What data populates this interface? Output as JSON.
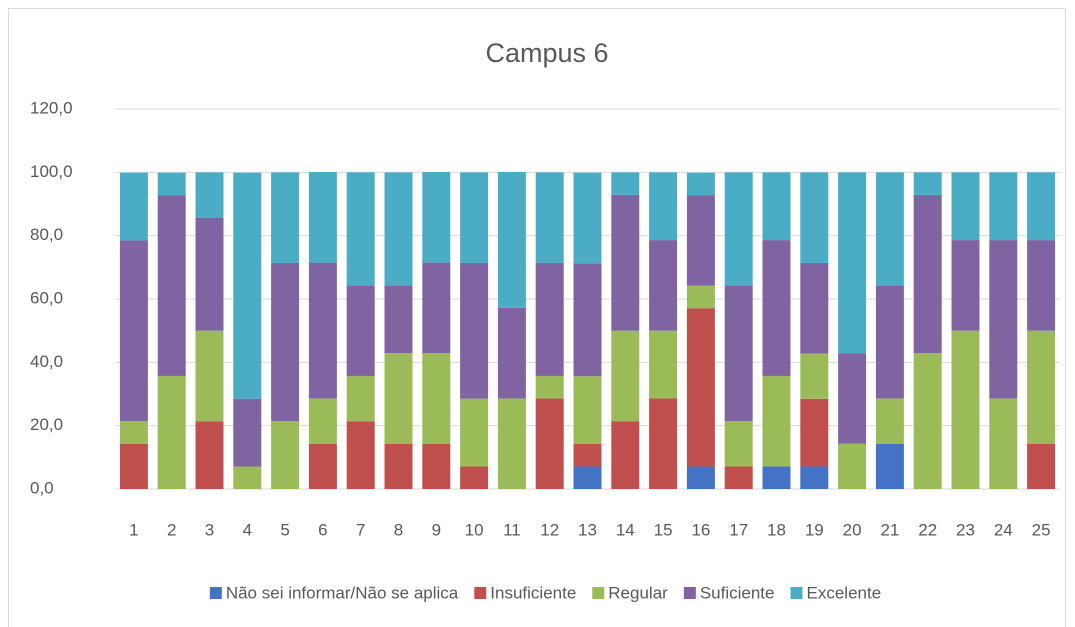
{
  "chart_data": {
    "type": "stacked_bar",
    "title": "Campus 6",
    "categories": [
      "1",
      "2",
      "3",
      "4",
      "5",
      "6",
      "7",
      "8",
      "9",
      "10",
      "11",
      "12",
      "13",
      "14",
      "15",
      "16",
      "17",
      "18",
      "19",
      "20",
      "21",
      "22",
      "23",
      "24",
      "25"
    ],
    "series": [
      {
        "name": "Não sei informar/Não se aplica",
        "color": "#4472c4",
        "values": [
          0,
          0,
          0,
          0,
          0,
          0,
          0,
          0,
          0,
          0,
          0,
          0,
          7.1,
          0,
          0,
          7.1,
          0,
          7.1,
          7.1,
          0,
          14.3,
          0,
          0,
          0,
          0
        ]
      },
      {
        "name": "Insuficiente",
        "color": "#c0504d",
        "values": [
          14.3,
          0,
          21.4,
          0,
          0,
          14.3,
          21.4,
          14.3,
          14.3,
          7.1,
          0,
          28.6,
          7.1,
          21.4,
          28.6,
          50,
          7.1,
          0,
          21.4,
          0,
          0,
          0,
          0,
          0,
          14.3
        ]
      },
      {
        "name": "Regular",
        "color": "#9bbb59",
        "values": [
          7.1,
          35.7,
          28.6,
          7.1,
          21.4,
          14.3,
          14.3,
          28.6,
          28.6,
          21.4,
          28.6,
          7.1,
          21.4,
          28.6,
          21.4,
          7.1,
          14.3,
          28.6,
          14.3,
          14.3,
          14.3,
          42.9,
          50,
          28.6,
          35.7
        ]
      },
      {
        "name": "Suficiente",
        "color": "#8064a2",
        "values": [
          57.1,
          57.1,
          35.7,
          21.4,
          50,
          42.9,
          28.6,
          21.4,
          28.6,
          42.9,
          28.6,
          35.7,
          35.7,
          42.9,
          28.6,
          28.6,
          42.9,
          42.9,
          28.6,
          28.6,
          35.7,
          50,
          28.6,
          50,
          28.6
        ]
      },
      {
        "name": "Excelente",
        "color": "#4bacc6",
        "values": [
          21.4,
          7.1,
          14.3,
          71.4,
          28.6,
          28.6,
          35.7,
          35.7,
          28.6,
          28.6,
          42.9,
          28.6,
          28.6,
          7.1,
          21.4,
          7.1,
          35.7,
          21.4,
          28.6,
          57.1,
          35.7,
          7.1,
          21.4,
          21.4,
          21.4
        ]
      }
    ],
    "ylim": [
      0,
      120
    ],
    "yticks": [
      {
        "value": 0,
        "label": "0,0"
      },
      {
        "value": 20,
        "label": "20,0"
      },
      {
        "value": 40,
        "label": "40,0"
      },
      {
        "value": 60,
        "label": "60,0"
      },
      {
        "value": 80,
        "label": "80,0"
      },
      {
        "value": 100,
        "label": "100,0"
      },
      {
        "value": 120,
        "label": "120,0"
      }
    ],
    "grid": true,
    "legend": "bottom"
  }
}
